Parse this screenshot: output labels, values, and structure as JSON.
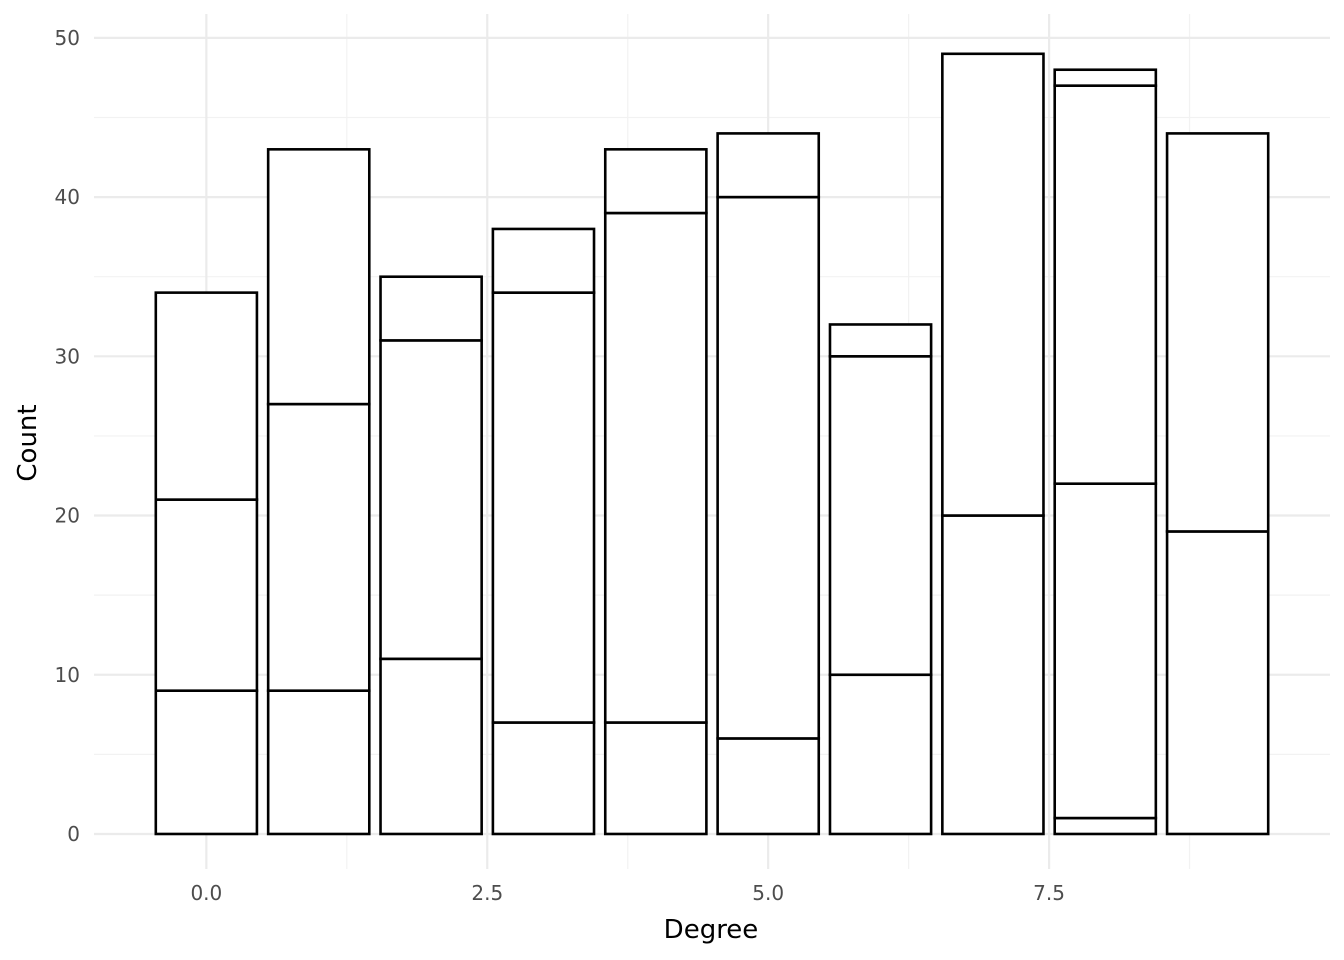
{
  "chart_data": {
    "type": "bar",
    "stacked": true,
    "title": "",
    "xlabel": "Degree",
    "ylabel": "Count",
    "x": [
      0,
      1,
      2,
      3,
      4,
      5,
      6,
      7,
      8,
      9
    ],
    "stacks": [
      [
        9,
        12,
        13
      ],
      [
        9,
        18,
        16
      ],
      [
        11,
        20,
        4
      ],
      [
        7,
        27,
        4
      ],
      [
        7,
        32,
        4
      ],
      [
        6,
        34,
        4
      ],
      [
        10,
        20,
        2
      ],
      [
        20,
        29
      ],
      [
        1,
        21,
        25,
        1
      ],
      [
        19,
        25
      ]
    ],
    "totals": [
      34,
      43,
      35,
      38,
      43,
      44,
      32,
      49,
      48,
      44
    ],
    "xlim": [
      -1,
      10
    ],
    "ylim": [
      -2.2,
      51.5
    ],
    "x_ticks": [
      0,
      2.5,
      5,
      7.5
    ],
    "x_tick_labels": [
      "0.0",
      "2.5",
      "5.0",
      "7.5"
    ],
    "y_ticks": [
      0,
      10,
      20,
      30,
      40,
      50
    ],
    "y_tick_labels": [
      "0",
      "10",
      "20",
      "30",
      "40",
      "50"
    ],
    "bar_width": 0.9,
    "grid": true,
    "legend": "none",
    "colors": {
      "fill": "#ffffff",
      "outline": "#000000",
      "grid_major": "#ebebeb",
      "grid_minor": "#f2f2f2",
      "tick_text": "#4d4d4d"
    }
  }
}
